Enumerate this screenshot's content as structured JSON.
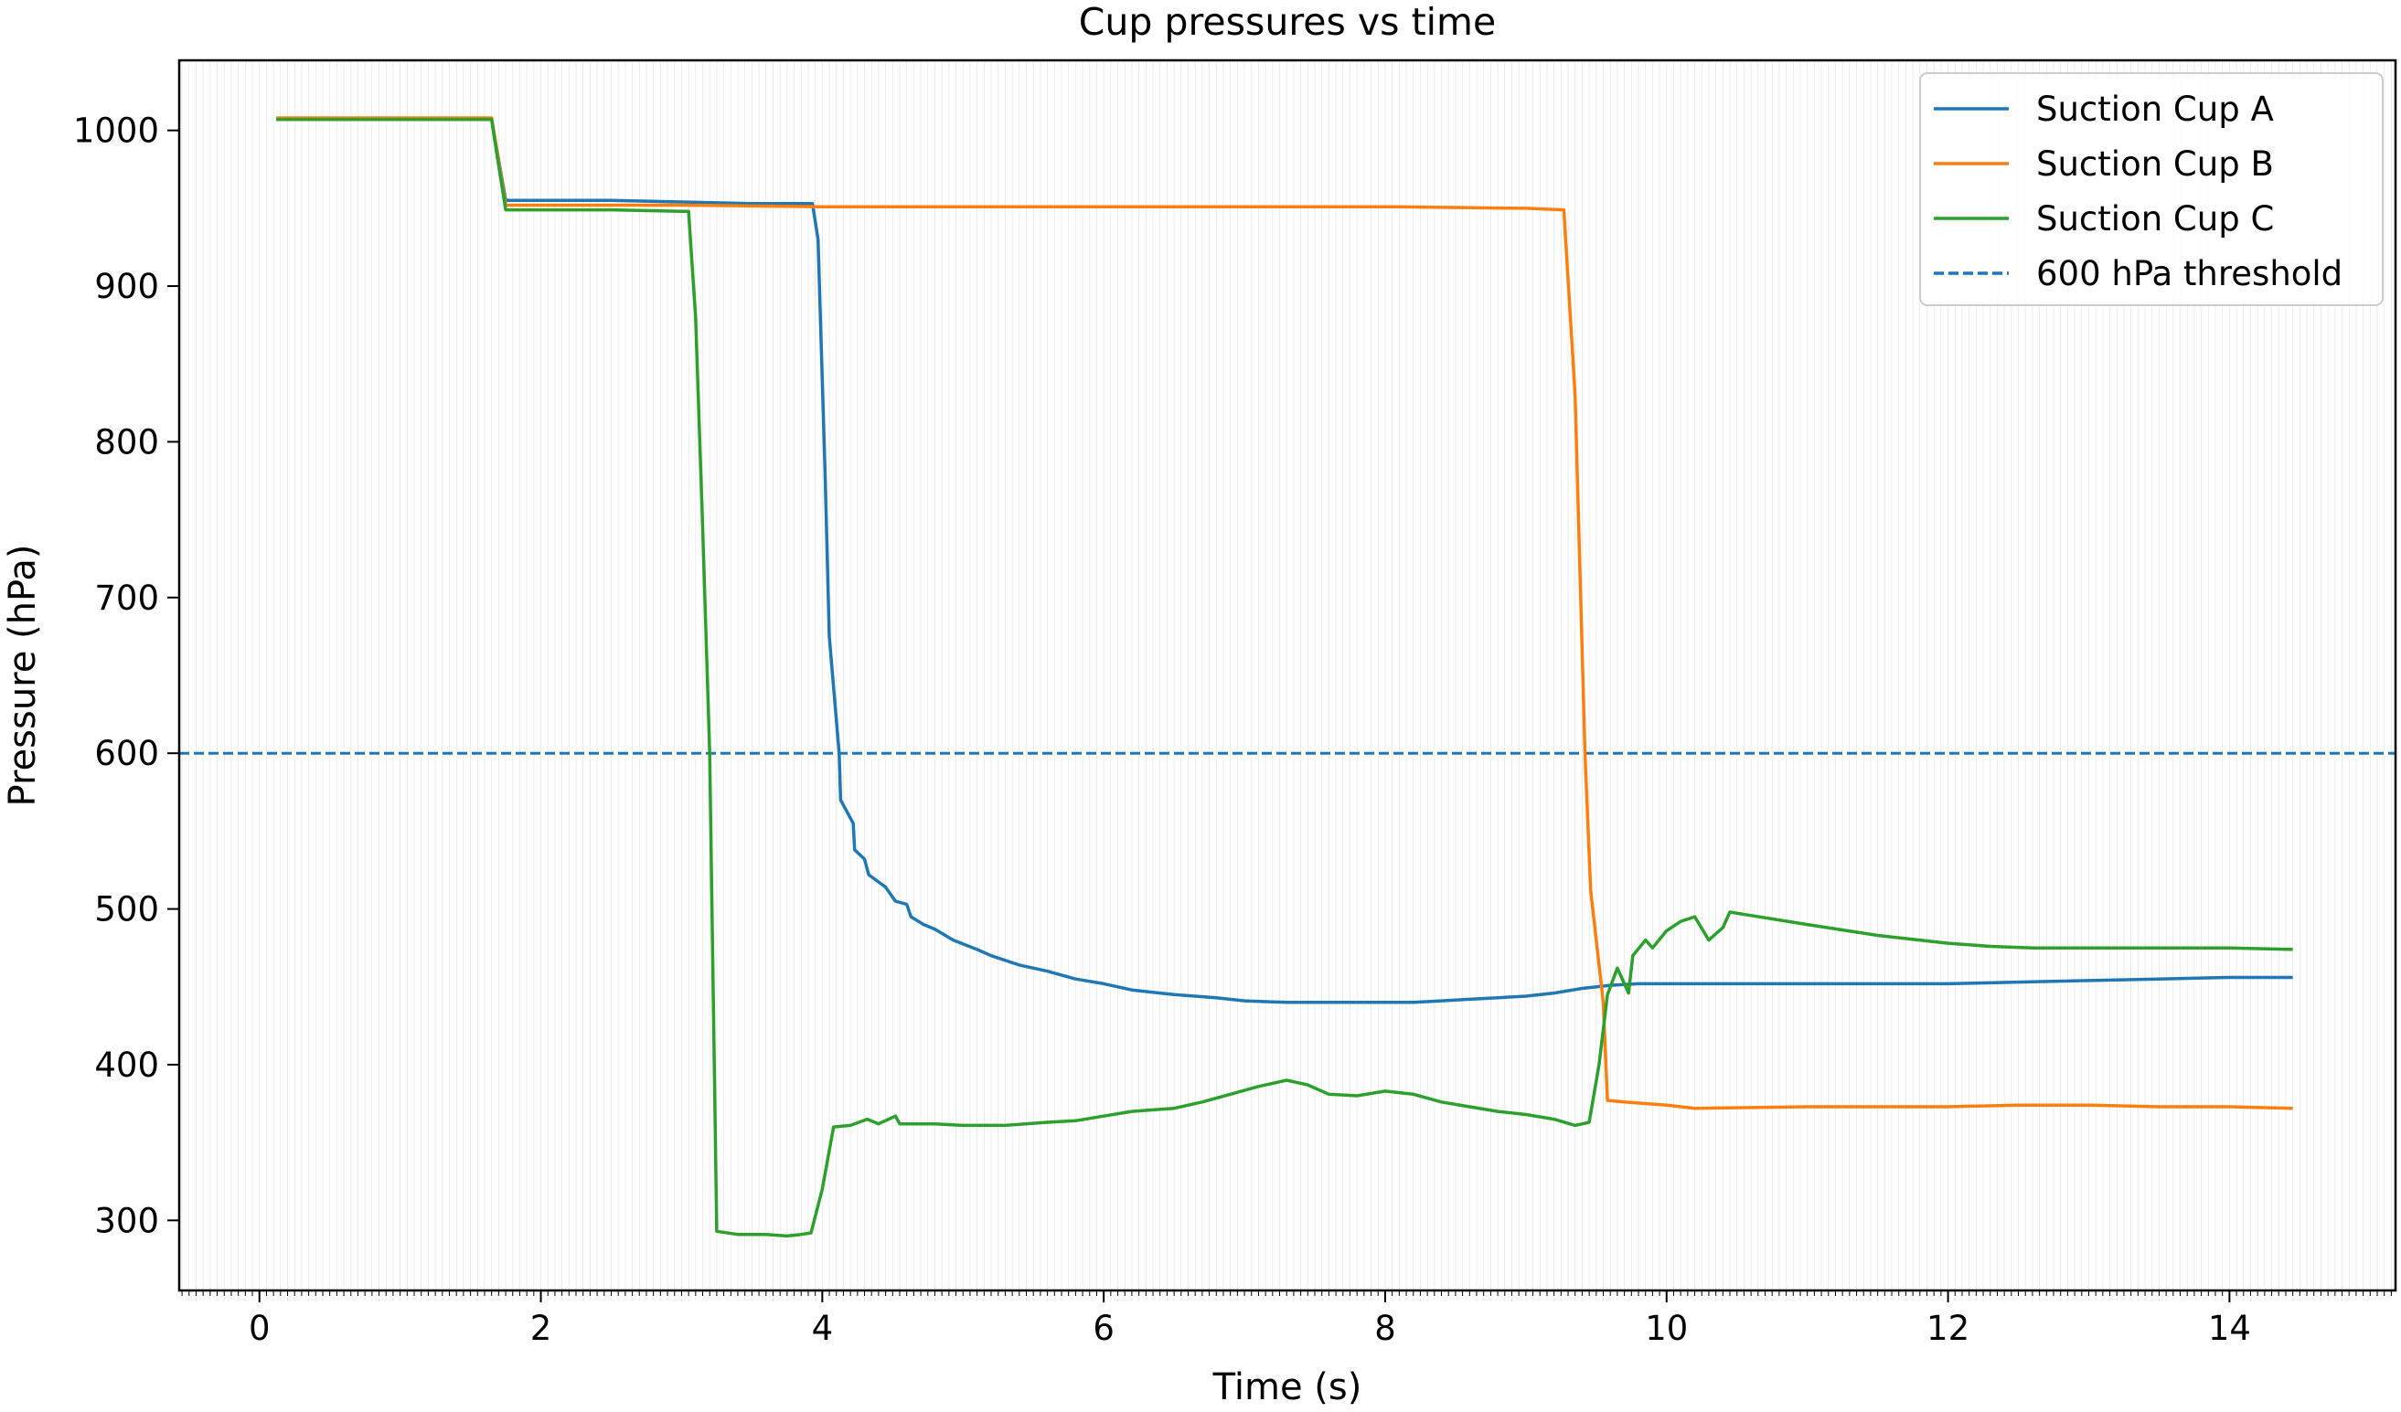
{
  "chart_data": {
    "type": "line",
    "title": "Cup pressures vs time",
    "xlabel": "Time (s)",
    "ylabel": "Pressure (hPa)",
    "xlim": [
      -0.57,
      15.18
    ],
    "ylim": [
      255,
      1045
    ],
    "xticks": [
      0,
      2,
      4,
      6,
      8,
      10,
      12,
      14
    ],
    "yticks": [
      300,
      400,
      500,
      600,
      700,
      800,
      900,
      1000
    ],
    "grid": "fine vertical gridlines",
    "legend_position": "top-right",
    "threshold": {
      "name": "600 hPa threshold",
      "value": 600,
      "color": "#1f77b4",
      "style": "dashed"
    },
    "series": [
      {
        "name": "Suction Cup A",
        "color": "#1f77b4",
        "points": [
          [
            0.12,
            1007
          ],
          [
            1.65,
            1007
          ],
          [
            1.75,
            955
          ],
          [
            2.5,
            955
          ],
          [
            3.0,
            954
          ],
          [
            3.5,
            953
          ],
          [
            3.93,
            953
          ],
          [
            3.97,
            930
          ],
          [
            4.02,
            780
          ],
          [
            4.05,
            675
          ],
          [
            4.12,
            600
          ],
          [
            4.13,
            570
          ],
          [
            4.22,
            555
          ],
          [
            4.23,
            538
          ],
          [
            4.3,
            532
          ],
          [
            4.33,
            522
          ],
          [
            4.45,
            514
          ],
          [
            4.52,
            505
          ],
          [
            4.6,
            503
          ],
          [
            4.63,
            495
          ],
          [
            4.72,
            490
          ],
          [
            4.8,
            487
          ],
          [
            4.93,
            480
          ],
          [
            5.1,
            474
          ],
          [
            5.2,
            470
          ],
          [
            5.4,
            464
          ],
          [
            5.6,
            460
          ],
          [
            5.8,
            455
          ],
          [
            6.0,
            452
          ],
          [
            6.2,
            448
          ],
          [
            6.5,
            445
          ],
          [
            6.8,
            443
          ],
          [
            7.0,
            441
          ],
          [
            7.3,
            440
          ],
          [
            7.6,
            440
          ],
          [
            7.9,
            440
          ],
          [
            8.2,
            440
          ],
          [
            8.4,
            441
          ],
          [
            8.6,
            442
          ],
          [
            8.8,
            443
          ],
          [
            9.0,
            444
          ],
          [
            9.2,
            446
          ],
          [
            9.4,
            449
          ],
          [
            9.6,
            451
          ],
          [
            9.8,
            452
          ],
          [
            10.0,
            452
          ],
          [
            11.0,
            452
          ],
          [
            12.0,
            452
          ],
          [
            12.5,
            453
          ],
          [
            13.0,
            454
          ],
          [
            13.5,
            455
          ],
          [
            14.0,
            456
          ],
          [
            14.45,
            456
          ]
        ]
      },
      {
        "name": "Suction Cup B",
        "color": "#ff7f0e",
        "points": [
          [
            0.12,
            1008
          ],
          [
            1.65,
            1008
          ],
          [
            1.75,
            952
          ],
          [
            2.5,
            952
          ],
          [
            3.0,
            952
          ],
          [
            4.0,
            951
          ],
          [
            5.0,
            951
          ],
          [
            6.0,
            951
          ],
          [
            7.0,
            951
          ],
          [
            8.0,
            951
          ],
          [
            9.0,
            950
          ],
          [
            9.27,
            949
          ],
          [
            9.35,
            830
          ],
          [
            9.42,
            600
          ],
          [
            9.46,
            512
          ],
          [
            9.55,
            440
          ],
          [
            9.58,
            377
          ],
          [
            9.7,
            376
          ],
          [
            10.0,
            374
          ],
          [
            10.2,
            372
          ],
          [
            11.0,
            373
          ],
          [
            12.0,
            373
          ],
          [
            12.5,
            374
          ],
          [
            13.0,
            374
          ],
          [
            13.5,
            373
          ],
          [
            14.0,
            373
          ],
          [
            14.45,
            372
          ]
        ]
      },
      {
        "name": "Suction Cup C",
        "color": "#2ca02c",
        "points": [
          [
            0.12,
            1007
          ],
          [
            1.65,
            1007
          ],
          [
            1.67,
            995
          ],
          [
            1.75,
            949
          ],
          [
            2.0,
            949
          ],
          [
            2.5,
            949
          ],
          [
            3.0,
            948
          ],
          [
            3.05,
            948
          ],
          [
            3.1,
            880
          ],
          [
            3.15,
            745
          ],
          [
            3.2,
            600
          ],
          [
            3.25,
            293
          ],
          [
            3.4,
            291
          ],
          [
            3.6,
            291
          ],
          [
            3.75,
            290
          ],
          [
            3.85,
            291
          ],
          [
            3.92,
            292
          ],
          [
            4.0,
            320
          ],
          [
            4.08,
            360
          ],
          [
            4.2,
            361
          ],
          [
            4.32,
            365
          ],
          [
            4.4,
            362
          ],
          [
            4.52,
            367
          ],
          [
            4.55,
            362
          ],
          [
            4.8,
            362
          ],
          [
            5.0,
            361
          ],
          [
            5.3,
            361
          ],
          [
            5.6,
            363
          ],
          [
            5.8,
            364
          ],
          [
            6.0,
            367
          ],
          [
            6.2,
            370
          ],
          [
            6.5,
            372
          ],
          [
            6.7,
            376
          ],
          [
            6.9,
            381
          ],
          [
            7.1,
            386
          ],
          [
            7.3,
            390
          ],
          [
            7.45,
            387
          ],
          [
            7.6,
            381
          ],
          [
            7.8,
            380
          ],
          [
            8.0,
            383
          ],
          [
            8.2,
            381
          ],
          [
            8.4,
            376
          ],
          [
            8.6,
            373
          ],
          [
            8.8,
            370
          ],
          [
            9.0,
            368
          ],
          [
            9.2,
            365
          ],
          [
            9.35,
            361
          ],
          [
            9.45,
            363
          ],
          [
            9.52,
            400
          ],
          [
            9.58,
            445
          ],
          [
            9.65,
            462
          ],
          [
            9.7,
            452
          ],
          [
            9.73,
            446
          ],
          [
            9.76,
            470
          ],
          [
            9.85,
            480
          ],
          [
            9.9,
            475
          ],
          [
            10.0,
            486
          ],
          [
            10.1,
            492
          ],
          [
            10.2,
            495
          ],
          [
            10.3,
            480
          ],
          [
            10.4,
            488
          ],
          [
            10.45,
            498
          ],
          [
            11.0,
            490
          ],
          [
            11.5,
            483
          ],
          [
            12.0,
            478
          ],
          [
            12.3,
            476
          ],
          [
            12.6,
            475
          ],
          [
            13.0,
            475
          ],
          [
            13.5,
            475
          ],
          [
            14.0,
            475
          ],
          [
            14.45,
            474
          ]
        ]
      }
    ]
  }
}
